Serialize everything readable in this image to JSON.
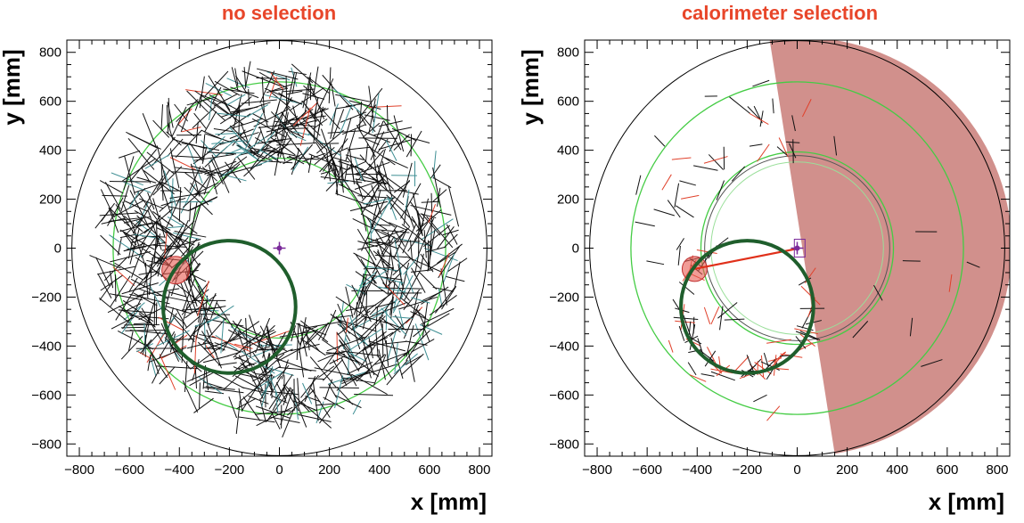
{
  "colors": {
    "title": "#e8462a",
    "frame": "#000000",
    "outer_ring": "#000000",
    "green_ring": "#44cc44",
    "track_ring": "#1f5e2c",
    "hit_black": "#111111",
    "hit_teal": "#3f8f94",
    "hit_red": "#e0402a",
    "wedge": "#cf8a86",
    "cluster": "#e85a50",
    "vertex": "#7a2a9a",
    "connector": "#e0301a"
  },
  "chart_data": [
    {
      "type": "scatter",
      "title": "no selection",
      "xlabel": "x [mm]",
      "ylabel": "y [mm]",
      "xlim": [
        -850,
        850
      ],
      "ylim": [
        -850,
        850
      ],
      "xticks": [
        -800,
        -600,
        -400,
        -200,
        0,
        200,
        400,
        600,
        800
      ],
      "yticks": [
        -800,
        -600,
        -400,
        -200,
        0,
        200,
        400,
        600,
        800
      ],
      "grid": false,
      "rings": [
        {
          "name": "outer",
          "cx": 0,
          "cy": 0,
          "r": 830
        },
        {
          "name": "green-outer",
          "cx": 0,
          "cy": 0,
          "r": 665
        },
        {
          "name": "green-inner",
          "cx": 0,
          "cy": 0,
          "r": 360
        }
      ],
      "track_circle": {
        "cx": -200,
        "cy": -240,
        "r": 265
      },
      "cluster": {
        "cx": -415,
        "cy": -90,
        "r": 55
      },
      "vertex": {
        "x": 0,
        "y": 0
      },
      "hits": {
        "r_min": 350,
        "r_max": 720,
        "density": "high",
        "colors": [
          "black",
          "teal",
          "red"
        ]
      }
    },
    {
      "type": "scatter",
      "title": "calorimeter selection",
      "xlabel": "x [mm]",
      "ylabel": "y [mm]",
      "xlim": [
        -850,
        850
      ],
      "ylim": [
        -850,
        850
      ],
      "xticks": [
        -800,
        -600,
        -400,
        -200,
        0,
        200,
        400,
        600,
        800
      ],
      "yticks": [
        -800,
        -600,
        -400,
        -200,
        0,
        200,
        400,
        600,
        800
      ],
      "grid": false,
      "rings": [
        {
          "name": "outer",
          "cx": 0,
          "cy": 0,
          "r": 830
        },
        {
          "name": "green-outer",
          "cx": 0,
          "cy": 0,
          "r": 665
        },
        {
          "name": "green-inner",
          "cx": 0,
          "cy": 0,
          "r": 385
        },
        {
          "name": "inner-dark",
          "cx": 0,
          "cy": 0,
          "r": 370
        },
        {
          "name": "inner-light",
          "cx": 0,
          "cy": 0,
          "r": 345
        }
      ],
      "selection_wedge": {
        "angle_start_deg": 10,
        "angle_end_deg": 285,
        "edge_points": [
          [
            -110,
            850
          ],
          [
            150,
            -840
          ]
        ]
      },
      "track_circle": {
        "cx": -200,
        "cy": -240,
        "r": 265
      },
      "cluster": {
        "cx": -410,
        "cy": -85,
        "r": 50
      },
      "connector": {
        "from": [
          -410,
          -85
        ],
        "to": [
          10,
          0
        ]
      },
      "vertex": {
        "x": 0,
        "y": 0
      },
      "hits": {
        "r_min": 350,
        "r_max": 720,
        "density": "sparse",
        "colors": [
          "black",
          "red"
        ]
      }
    }
  ]
}
